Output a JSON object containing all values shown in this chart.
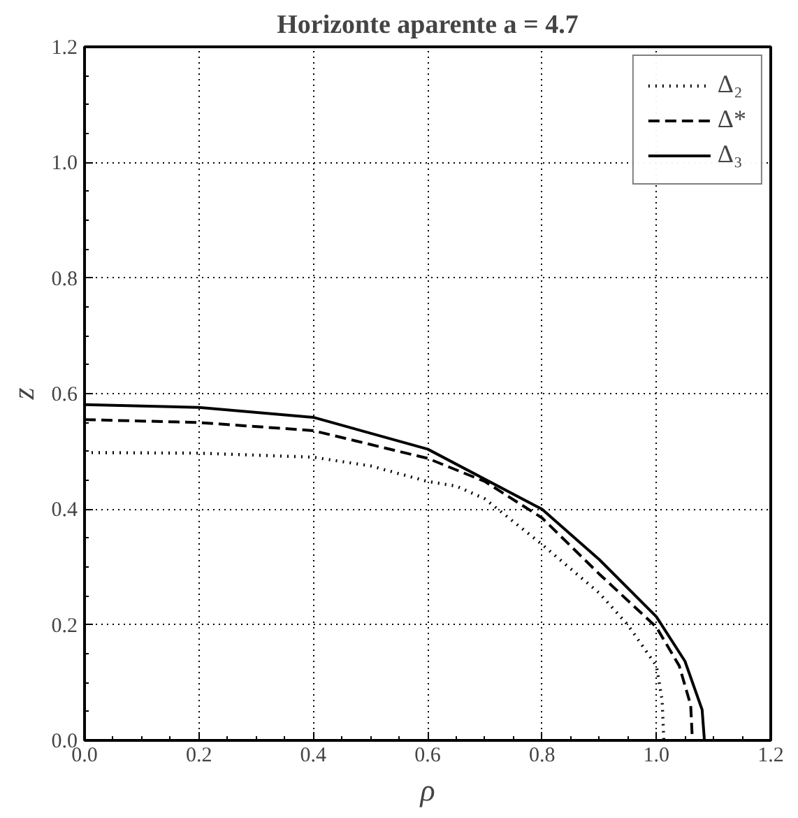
{
  "chart_data": {
    "type": "line",
    "title": "Horizonte aparente a = 4.7",
    "xlabel": "ρ",
    "ylabel": "z",
    "xlim": [
      0,
      1.2
    ],
    "ylim": [
      0,
      1.2
    ],
    "xticks": [
      {
        "value": 0,
        "label": "0.0"
      },
      0.2,
      0.4,
      0.6,
      0.8,
      {
        "value": 1,
        "label": "1.0"
      },
      1.2
    ],
    "yticks": [
      {
        "value": 0,
        "label": "0.0"
      },
      0.2,
      0.4,
      0.6,
      0.8,
      {
        "value": 1,
        "label": "1.0"
      },
      1.2
    ],
    "grid": true,
    "legend": "top right",
    "series": [
      {
        "name": "Δ₂",
        "color": "#000000",
        "line_style": "dotted",
        "x": [
          0,
          0.2,
          0.4,
          0.5,
          0.6,
          0.65,
          0.7,
          0.8,
          0.9,
          0.95,
          1.0,
          1.01,
          1.013
        ],
        "values": [
          0.498,
          0.497,
          0.49,
          0.475,
          0.448,
          0.44,
          0.418,
          0.339,
          0.255,
          0.2,
          0.129,
          0.07,
          0
        ]
      },
      {
        "name": "Δ*",
        "color": "#000000",
        "line_style": "dashed",
        "x": [
          0,
          0.2,
          0.4,
          0.6,
          0.7,
          0.8,
          0.9,
          1.0,
          1.04,
          1.06,
          1.063
        ],
        "values": [
          0.555,
          0.55,
          0.536,
          0.488,
          0.448,
          0.385,
          0.288,
          0.196,
          0.129,
          0.061,
          0
        ]
      },
      {
        "name": "Δ₃",
        "color": "#000000",
        "line_style": "solid",
        "x": [
          0,
          0.2,
          0.4,
          0.6,
          0.8,
          0.9,
          1.0,
          1.05,
          1.08,
          1.084
        ],
        "values": [
          0.581,
          0.576,
          0.559,
          0.504,
          0.4,
          0.313,
          0.214,
          0.137,
          0.053,
          0
        ]
      }
    ]
  }
}
